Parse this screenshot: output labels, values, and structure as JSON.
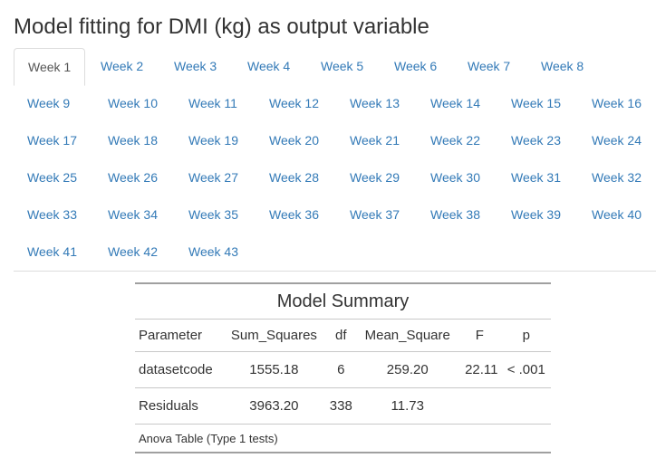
{
  "title": "Model fitting for DMI (kg) as output variable",
  "tabs": [
    "Week 1",
    "Week 2",
    "Week 3",
    "Week 4",
    "Week 5",
    "Week 6",
    "Week 7",
    "Week 8",
    "Week 9",
    "Week 10",
    "Week 11",
    "Week 12",
    "Week 13",
    "Week 14",
    "Week 15",
    "Week 16",
    "Week 17",
    "Week 18",
    "Week 19",
    "Week 20",
    "Week 21",
    "Week 22",
    "Week 23",
    "Week 24",
    "Week 25",
    "Week 26",
    "Week 27",
    "Week 28",
    "Week 29",
    "Week 30",
    "Week 31",
    "Week 32",
    "Week 33",
    "Week 34",
    "Week 35",
    "Week 36",
    "Week 37",
    "Week 38",
    "Week 39",
    "Week 40",
    "Week 41",
    "Week 42",
    "Week 43"
  ],
  "active_tab": "Week 1",
  "summary": {
    "caption": "Model Summary",
    "headers": [
      "Parameter",
      "Sum_Squares",
      "df",
      "Mean_Square",
      "F",
      "p"
    ],
    "rows": [
      [
        "datasetcode",
        "1555.18",
        "6",
        "259.20",
        "22.11",
        "< .001"
      ],
      [
        "Residuals",
        "3963.20",
        "338",
        "11.73",
        "",
        ""
      ]
    ],
    "note": "Anova Table (Type 1 tests)"
  },
  "colors": {
    "link": "#337ab7",
    "active_tab_text": "#555555",
    "border": "#dddddd",
    "text": "#333333"
  }
}
